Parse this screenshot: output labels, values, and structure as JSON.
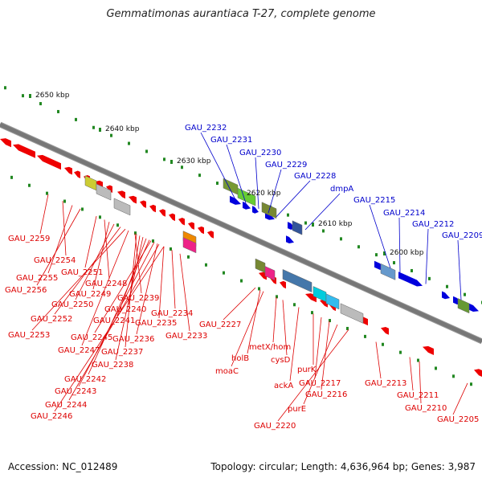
{
  "title": "Gemmatimonas aurantiaca T-27, complete genome",
  "footer": {
    "accession": "Accession: NC_012489",
    "topology": "Topology: circular; Length: 4,636,964 bp; Genes: 3,987"
  },
  "scale_labels": [
    "2650 kbp",
    "2640 kbp",
    "2630 kbp",
    "2620 kbp",
    "2610 kbp",
    "2600 kbp"
  ],
  "upper_labels": [
    "GAU_2232",
    "GAU_2231",
    "GAU_2230",
    "GAU_2229",
    "GAU_2228",
    "dmpA",
    "GAU_2215",
    "GAU_2214",
    "GAU_2212",
    "GAU_2209"
  ],
  "lower_labels": [
    "GAU_2259",
    "GAU_2254",
    "GAU_2255",
    "GAU_2256",
    "GAU_2251",
    "GAU_2248",
    "GAU_2249",
    "GAU_2250",
    "GAU_2252",
    "GAU_2253",
    "GAU_2239",
    "GAU_2240",
    "GAU_2241",
    "GAU_2245",
    "GAU_2236",
    "GAU_2235",
    "GAU_2234",
    "GAU_2233",
    "GAU_2247",
    "GAU_2237",
    "GAU_2238",
    "GAU_2242",
    "GAU_2243",
    "GAU_2244",
    "GAU_2246",
    "GAU_2227",
    "holB",
    "moaC",
    "metX/hom",
    "cysD",
    "ackA",
    "purK",
    "GAU_2217",
    "GAU_2216",
    "purE",
    "GAU_2220",
    "GAU_2213",
    "GAU_2211",
    "GAU_2210",
    "GAU_2205"
  ],
  "colors": {
    "forward": "#0000dd",
    "reverse": "#ee0000",
    "backbone": "#777777",
    "scale_tick": "#228822"
  }
}
